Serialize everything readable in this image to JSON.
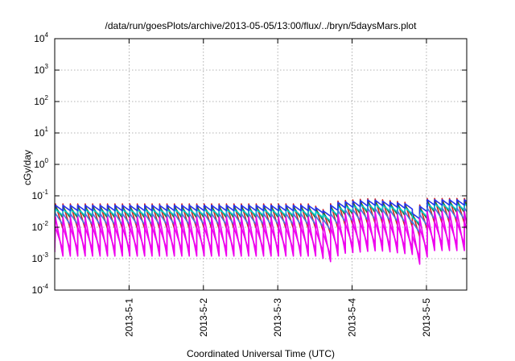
{
  "chart_data": {
    "type": "line",
    "title": "/data/run/goesPlots/archive/2013-05-05/13:00/flux/../bryn/5daysMars.plot",
    "xlabel": "Coordinated Universal Time (UTC)",
    "ylabel": "cGy/day",
    "y_scale": "log",
    "ylim": [
      0.0001,
      10000
    ],
    "y_ticks": [
      {
        "value": 0.0001,
        "base": "10",
        "exp": "-4"
      },
      {
        "value": 0.001,
        "base": "10",
        "exp": "-3"
      },
      {
        "value": 0.01,
        "base": "10",
        "exp": "-2"
      },
      {
        "value": 0.1,
        "base": "10",
        "exp": "-1"
      },
      {
        "value": 1,
        "base": "10",
        "exp": "0"
      },
      {
        "value": 10,
        "base": "10",
        "exp": "1"
      },
      {
        "value": 100,
        "base": "10",
        "exp": "2"
      },
      {
        "value": 1000,
        "base": "10",
        "exp": "3"
      },
      {
        "value": 10000,
        "base": "10",
        "exp": "4"
      }
    ],
    "xlim": [
      "2013-04-30T00:00",
      "2013-05-05T13:00"
    ],
    "x_ticks": [
      {
        "value": "2013-05-01T00:00",
        "label": "2013-5-1"
      },
      {
        "value": "2013-05-02T00:00",
        "label": "2013-5-2"
      },
      {
        "value": "2013-05-03T00:00",
        "label": "2013-5-3"
      },
      {
        "value": "2013-05-04T00:00",
        "label": "2013-5-4"
      },
      {
        "value": "2013-05-05T00:00",
        "label": "2013-5-5"
      }
    ],
    "grid": true,
    "pattern": {
      "spikes_per_day": 10,
      "peak_envelope": [
        {
          "t": "2013-04-30T00:00",
          "v": 0.05
        },
        {
          "t": "2013-05-03T12:00",
          "v": 0.05
        },
        {
          "t": "2013-05-03T13:00",
          "v": 0.025
        },
        {
          "t": "2013-05-03T18:00",
          "v": 0.06
        },
        {
          "t": "2013-05-04T06:00",
          "v": 0.075
        },
        {
          "t": "2013-05-04T18:00",
          "v": 0.055
        },
        {
          "t": "2013-05-04T19:00",
          "v": 0.025
        },
        {
          "t": "2013-05-05T00:00",
          "v": 0.075
        },
        {
          "t": "2013-05-05T13:00",
          "v": 0.075
        }
      ]
    },
    "series": [
      {
        "color": "#cc2222",
        "scale": 1.1,
        "decay": 0.055
      },
      {
        "color": "#2a6a2a",
        "scale": 0.9,
        "decay": 0.12
      },
      {
        "color": "#00cccc",
        "scale": 0.75,
        "decay": 0.22
      },
      {
        "color": "#2233ee",
        "scale": 1.0,
        "decay": 0.25
      },
      {
        "color": "#4477dd",
        "scale": 0.55,
        "decay": 0.12
      },
      {
        "color": "#ee00ee",
        "scale": 0.42,
        "decay": 0.035
      },
      {
        "color": "#ee00ee",
        "scale": 0.2,
        "decay": 0.06
      }
    ]
  }
}
